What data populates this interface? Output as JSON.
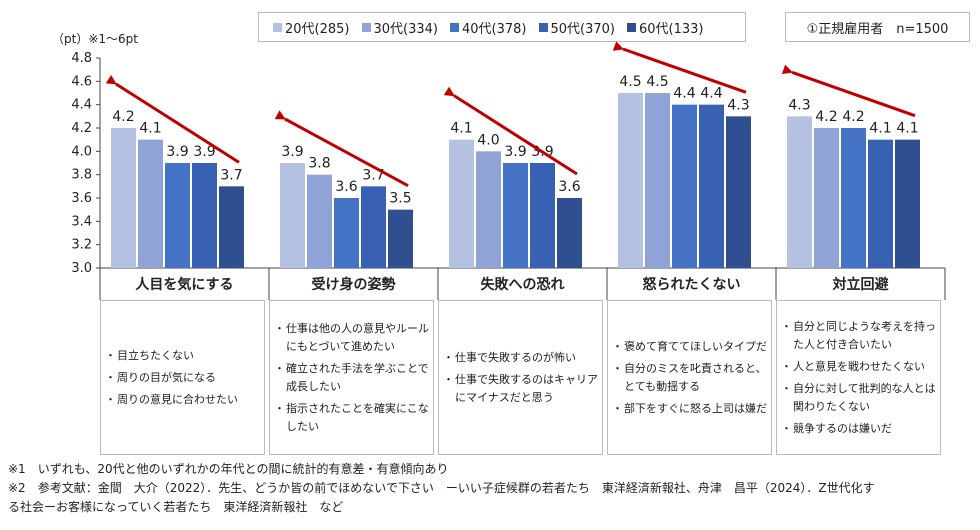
{
  "chart_data": {
    "type": "bar",
    "unit_label": "（pt）※1～6pt",
    "categories": [
      "人目を気にする",
      "受け身の姿勢",
      "失敗への恐れ",
      "怒られたくない",
      "対立回避"
    ],
    "series": [
      {
        "name": "20代(285)",
        "color": "#b4c1e0",
        "values": [
          4.2,
          3.9,
          4.1,
          4.5,
          4.3
        ]
      },
      {
        "name": "30代(334)",
        "color": "#8fa3d6",
        "values": [
          4.1,
          3.8,
          4.0,
          4.5,
          4.2
        ]
      },
      {
        "name": "40代(378)",
        "color": "#4472c4",
        "values": [
          3.9,
          3.6,
          3.9,
          4.4,
          4.2
        ]
      },
      {
        "name": "50代(370)",
        "color": "#3861b3",
        "values": [
          3.9,
          3.7,
          3.9,
          4.4,
          4.1
        ]
      },
      {
        "name": "60代(133)",
        "color": "#2f4f91",
        "values": [
          3.7,
          3.5,
          3.6,
          4.3,
          4.1
        ]
      }
    ],
    "value_labels": [
      [
        "4.2",
        "4.1",
        "3.9",
        "3.9",
        "3.7"
      ],
      [
        "3.9",
        "3.8",
        "3.6",
        "3.7",
        "3.5"
      ],
      [
        "4.1",
        "4.0",
        "3.9",
        "3.9",
        "3.6"
      ],
      [
        "4.5",
        "4.5",
        "4.4",
        "4.4",
        "4.3"
      ],
      [
        "4.3",
        "4.2",
        "4.2",
        "4.1",
        "4.1"
      ]
    ],
    "ylim": [
      3.0,
      4.8
    ],
    "yticks": [
      "3.0",
      "3.2",
      "3.4",
      "3.6",
      "3.8",
      "4.0",
      "4.2",
      "4.4",
      "4.6",
      "4.8"
    ],
    "trend_arrow_color": "#c00000",
    "grid": false,
    "legend_position": "top"
  },
  "sample_label": "①正規雇用者　n=1500",
  "descriptions": [
    [
      "目立ちたくない",
      "周りの目が気になる",
      "周りの意見に合わせたい"
    ],
    [
      "仕事は他の人の意見やルールにもとづいて進めたい",
      "確立された手法を学ぶことで成長したい",
      "指示されたことを確実にこなしたい"
    ],
    [
      "仕事で失敗するのが怖い",
      "仕事で失敗するのはキャリアにマイナスだと思う"
    ],
    [
      "褒めて育ててほしいタイプだ",
      "自分のミスを叱責されると、とても動揺する",
      "部下をすぐに怒る上司は嫌だ"
    ],
    [
      "自分と同じような考えを持った人と付き合いたい",
      "人と意見を戦わせたくない",
      "自分に対して批判的な人とは関わりたくない",
      "競争するのは嫌いだ"
    ]
  ],
  "notes": [
    "※1　いずれも、20代と他のいずれかの年代との間に統計的有意差・有意傾向あり",
    "※2　参考文献：金間　大介（2022）．先生、どうか皆の前でほめないで下さい　ーいい子症候群の若者たち　東洋経済新報社、舟津　昌平（2024）．Z世代化す",
    "る社会ーお客様になっていく若者たち　東洋経済新報社　など"
  ]
}
